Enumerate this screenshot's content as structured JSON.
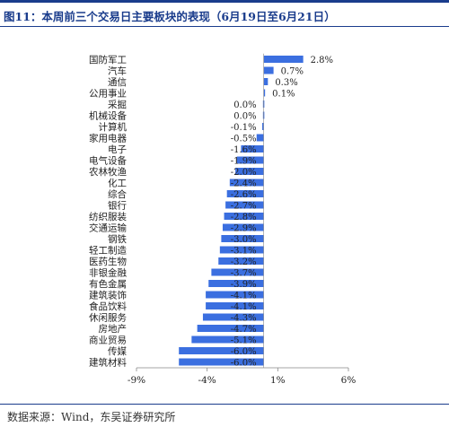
{
  "figure": {
    "title": "图11：本周前三个交易日主要板块的表现（6月19日至6月21日）",
    "source": "数据来源：Wind，东吴证券研究所"
  },
  "colors": {
    "bar": "#3b6fe0",
    "title": "#1a3c8c"
  },
  "chart_data": {
    "type": "bar",
    "orientation": "horizontal",
    "categories": [
      "国防军工",
      "汽车",
      "通信",
      "公用事业",
      "采掘",
      "机械设备",
      "计算机",
      "家用电器",
      "电子",
      "电气设备",
      "农林牧渔",
      "化工",
      "综合",
      "银行",
      "纺织服装",
      "交通运输",
      "钢铁",
      "轻工制造",
      "医药生物",
      "非银金融",
      "有色金属",
      "建筑装饰",
      "食品饮料",
      "休闲服务",
      "房地产",
      "商业贸易",
      "传媒",
      "建筑材料"
    ],
    "values": [
      2.8,
      0.7,
      0.3,
      0.1,
      0.0,
      0.0,
      -0.1,
      -0.5,
      -1.6,
      -1.9,
      -2.0,
      -2.4,
      -2.6,
      -2.7,
      -2.8,
      -2.9,
      -3.0,
      -3.1,
      -3.2,
      -3.7,
      -3.9,
      -4.1,
      -4.1,
      -4.3,
      -4.7,
      -5.1,
      -6.0,
      -6.0
    ],
    "value_labels": [
      "2.8%",
      "0.7%",
      "0.3%",
      "0.1%",
      "0.0%",
      "0.0%",
      "-0.1%",
      "-0.5%",
      "-1.6%",
      "-1.9%",
      "-2.0%",
      "-2.4%",
      "-2.6%",
      "-2.7%",
      "-2.8%",
      "-2.9%",
      "-3.0%",
      "-3.1%",
      "-3.2%",
      "-3.7%",
      "-3.9%",
      "-4.1%",
      "-4.1%",
      "-4.3%",
      "-4.7%",
      "-5.1%",
      "-6.0%",
      "-6.0%"
    ],
    "xlim": [
      -9,
      6
    ],
    "xticks": [
      -9,
      -4,
      1,
      6
    ],
    "xtick_labels": [
      "-9%",
      "-4%",
      "1%",
      "6%"
    ],
    "grid": false,
    "legend": false
  }
}
